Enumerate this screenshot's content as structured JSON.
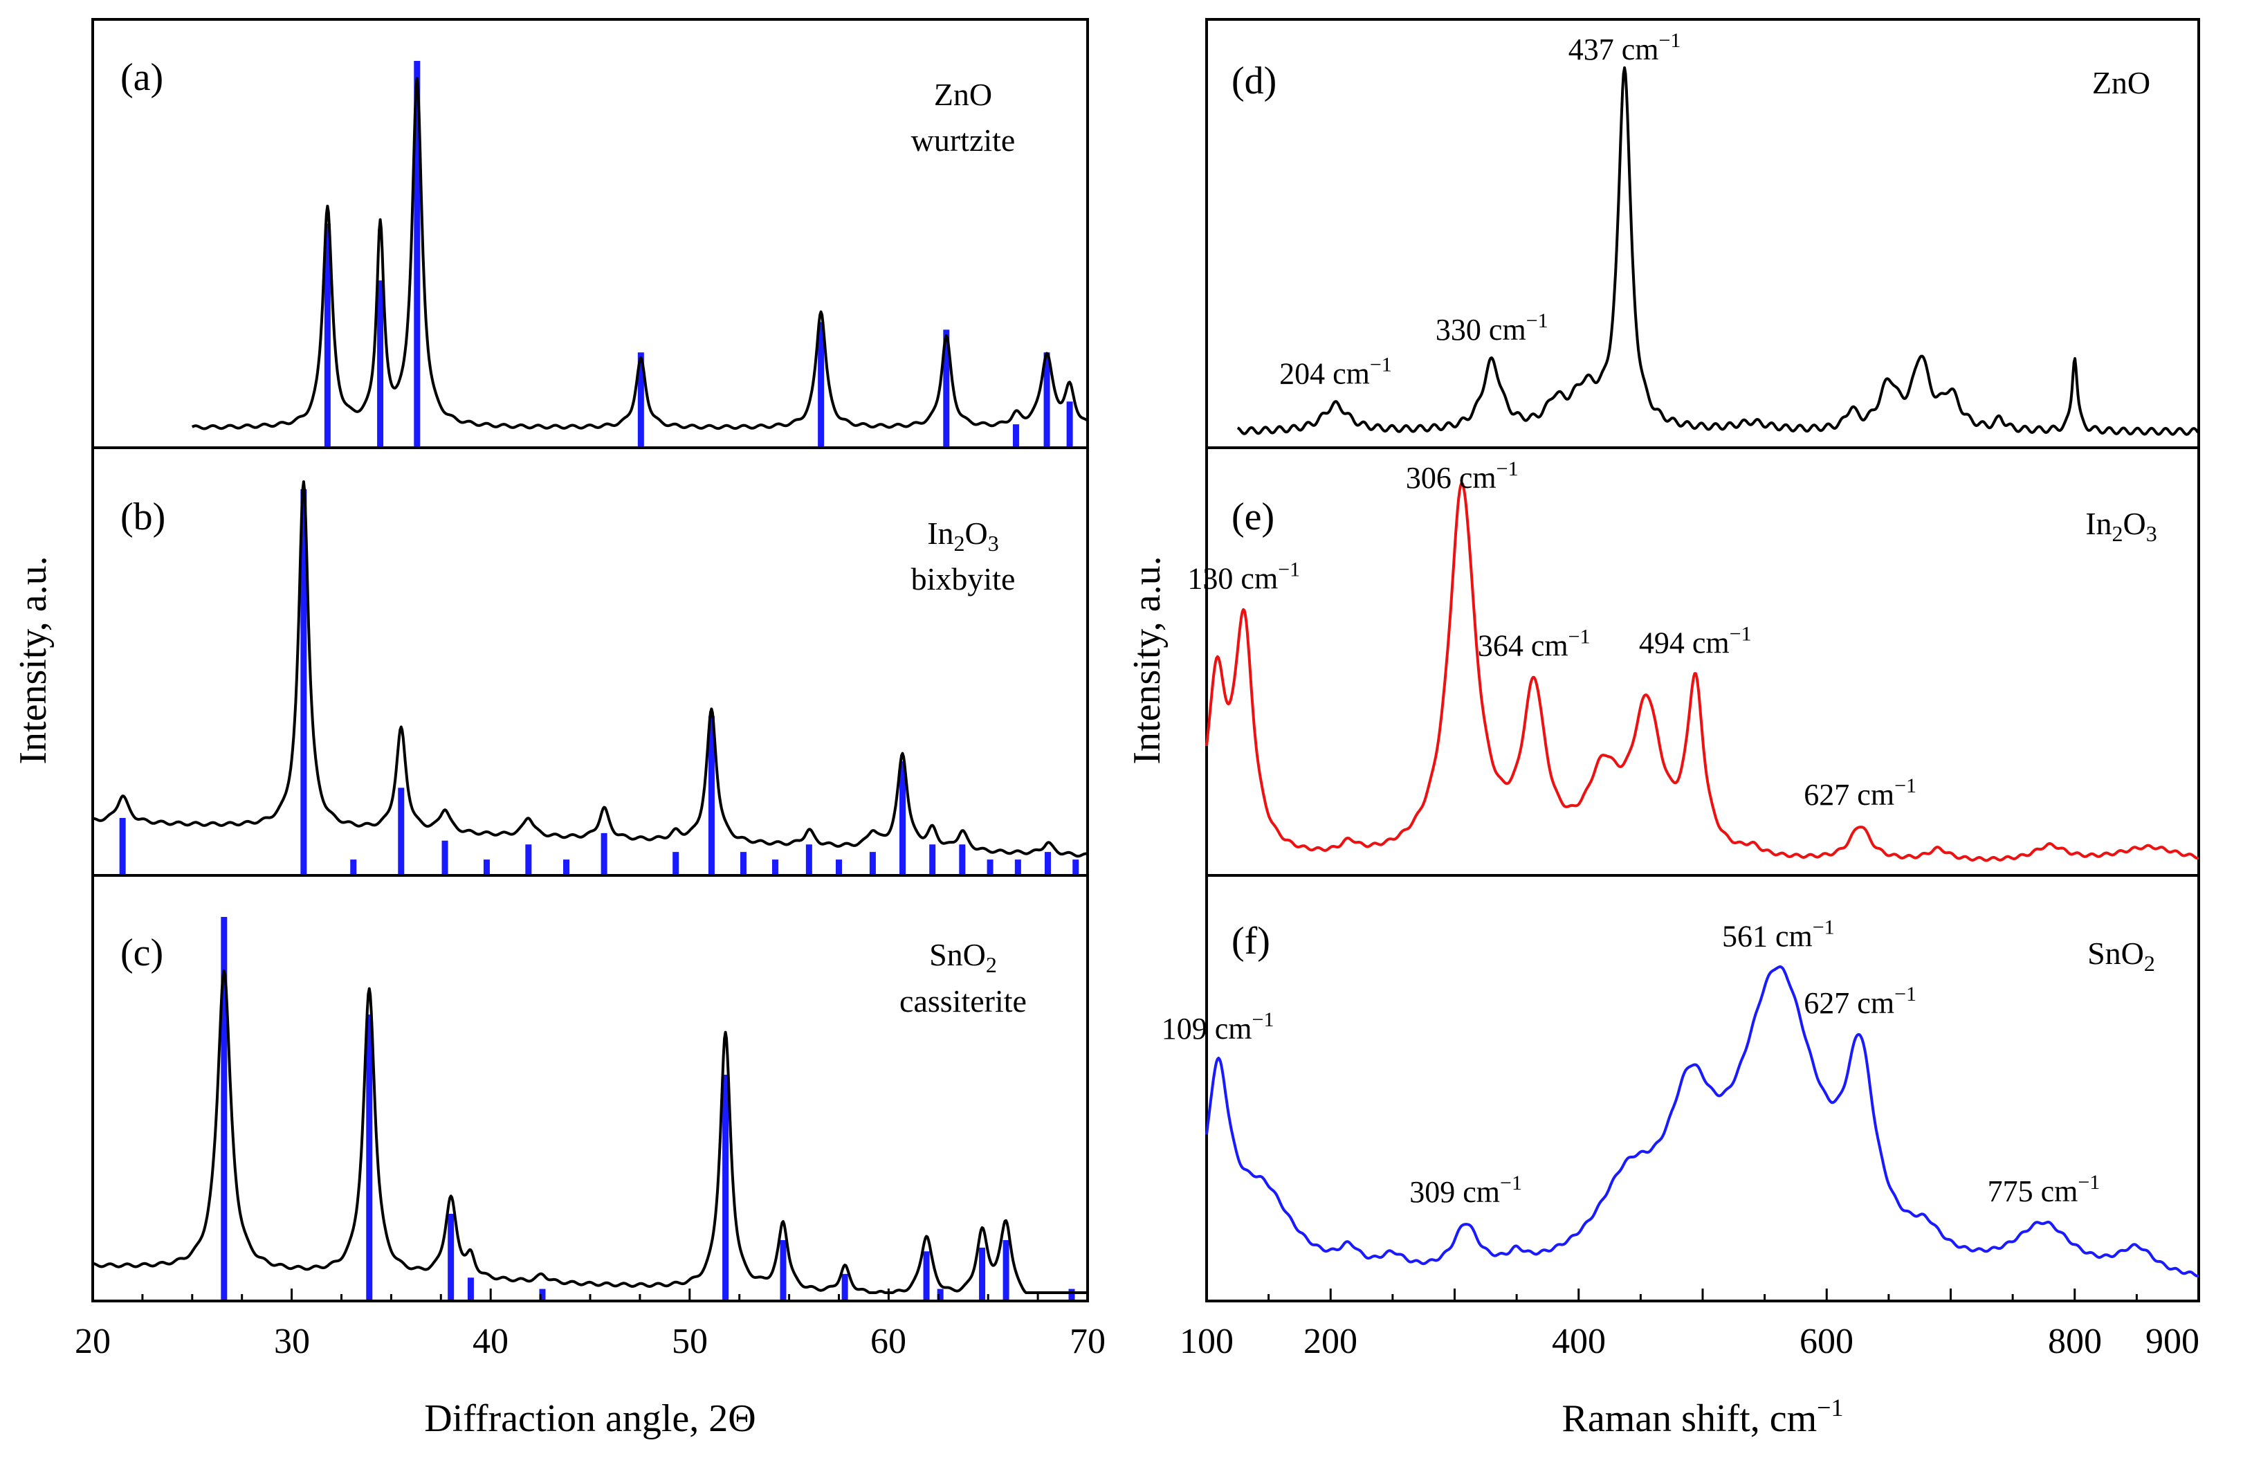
{
  "chart_data": [
    {
      "type": "line",
      "panel": "(a)",
      "label_lines": [
        "ZnO",
        "wurtzite"
      ],
      "x_axis": "Diffraction angle, 2Θ",
      "y_axis": "Intensity, a.u.",
      "xlim": [
        20,
        70
      ],
      "x_ticks": [
        20,
        30,
        40,
        50,
        60,
        70
      ],
      "series": [
        {
          "curve": "measured",
          "color": "#000000",
          "x_start": 25.0,
          "x_end": 70.0,
          "baseline": 0.03,
          "slope": 0.0,
          "peaks": [
            [
              31.8,
              0.58,
              0.28
            ],
            [
              34.45,
              0.52,
              0.22
            ],
            [
              36.3,
              0.91,
              0.3
            ],
            [
              47.55,
              0.18,
              0.3
            ],
            [
              56.6,
              0.31,
              0.3
            ],
            [
              62.9,
              0.24,
              0.3
            ],
            [
              66.4,
              0.03,
              0.3
            ],
            [
              67.95,
              0.19,
              0.35
            ],
            [
              69.1,
              0.1,
              0.3
            ]
          ]
        }
      ],
      "reference_lines": {
        "color": "#1a1aff",
        "x": [
          31.8,
          34.45,
          36.3,
          47.55,
          56.6,
          62.9,
          66.4,
          67.95,
          69.1
        ],
        "height": [
          0.57,
          0.42,
          1.0,
          0.23,
          0.31,
          0.29,
          0.04,
          0.23,
          0.1
        ]
      }
    },
    {
      "type": "line",
      "panel": "(b)",
      "label_lines": [
        "In",
        "2",
        "O",
        "3",
        "bixbyite"
      ],
      "xlim": [
        20,
        70
      ],
      "series": [
        {
          "curve": "measured",
          "color": "#000000",
          "x_start": 20.0,
          "x_end": 70.0,
          "baseline": 0.12,
          "slope": -0.0018,
          "peaks": [
            [
              21.5,
              0.07,
              0.35
            ],
            [
              30.6,
              0.92,
              0.3
            ],
            [
              35.5,
              0.27,
              0.3
            ],
            [
              37.7,
              0.06,
              0.3
            ],
            [
              41.9,
              0.05,
              0.3
            ],
            [
              45.7,
              0.08,
              0.3
            ],
            [
              49.3,
              0.02,
              0.3
            ],
            [
              51.1,
              0.35,
              0.3
            ],
            [
              56.0,
              0.04,
              0.3
            ],
            [
              59.2,
              0.04,
              0.3
            ],
            [
              60.7,
              0.25,
              0.3
            ],
            [
              62.2,
              0.05,
              0.3
            ],
            [
              63.7,
              0.05,
              0.3
            ],
            [
              68.0,
              0.03,
              0.3
            ]
          ]
        }
      ],
      "reference_lines": {
        "color": "#1a1aff",
        "x": [
          21.5,
          30.6,
          33.1,
          35.5,
          37.7,
          39.8,
          41.9,
          43.8,
          45.7,
          49.3,
          51.1,
          52.7,
          54.3,
          56.0,
          57.5,
          59.2,
          60.7,
          62.2,
          63.7,
          65.1,
          66.5,
          68.0,
          69.4
        ],
        "height": [
          0.13,
          1.0,
          0.02,
          0.21,
          0.07,
          0.02,
          0.06,
          0.02,
          0.09,
          0.04,
          0.4,
          0.04,
          0.02,
          0.06,
          0.02,
          0.04,
          0.28,
          0.06,
          0.06,
          0.02,
          0.02,
          0.04,
          0.02
        ]
      }
    },
    {
      "type": "line",
      "panel": "(c)",
      "label_lines": [
        "SnO",
        "2",
        "cassiterite"
      ],
      "xlim": [
        20,
        70
      ],
      "series": [
        {
          "curve": "measured",
          "color": "#000000",
          "x_start": 20.0,
          "x_end": 70.0,
          "baseline": 0.07,
          "slope": -0.002,
          "peaks": [
            [
              26.6,
              0.8,
              0.4
            ],
            [
              33.9,
              0.76,
              0.35
            ],
            [
              38.0,
              0.21,
              0.35
            ],
            [
              39.0,
              0.05,
              0.25
            ],
            [
              42.6,
              0.02,
              0.3
            ],
            [
              51.8,
              0.68,
              0.32
            ],
            [
              54.7,
              0.18,
              0.3
            ],
            [
              57.8,
              0.07,
              0.3
            ],
            [
              61.9,
              0.16,
              0.35
            ],
            [
              64.7,
              0.17,
              0.35
            ],
            [
              65.9,
              0.2,
              0.35
            ]
          ]
        }
      ],
      "reference_lines": {
        "color": "#1a1aff",
        "x": [
          26.6,
          33.9,
          38.0,
          39.0,
          42.6,
          51.8,
          54.7,
          57.8,
          61.9,
          62.6,
          64.7,
          65.9,
          69.2
        ],
        "height": [
          1.0,
          0.74,
          0.21,
          0.04,
          0.01,
          0.58,
          0.14,
          0.05,
          0.11,
          0.01,
          0.12,
          0.14,
          0.01
        ]
      }
    },
    {
      "type": "line",
      "panel": "(d)",
      "label_lines": [
        "ZnO"
      ],
      "x_axis": "Raman shift, cm⁻¹",
      "y_axis": "Intensity, a.u.",
      "xlim": [
        100,
        900
      ],
      "x_ticks": [
        100,
        200,
        400,
        600,
        800,
        900
      ],
      "series": [
        {
          "curve": "measured",
          "color": "#000000",
          "x_start": 125,
          "x_end": 900,
          "baseline": 0.02,
          "slope": 0.0,
          "peaks": [
            [
              204,
              0.07,
              12
            ],
            [
              330,
              0.18,
              9
            ],
            [
              381,
              0.06,
              8
            ],
            [
              405,
              0.1,
              14
            ],
            [
              437,
              0.95,
              6
            ],
            [
              540,
              0.02,
              15
            ],
            [
              620,
              0.05,
              5
            ],
            [
              650,
              0.12,
              9
            ],
            [
              676,
              0.18,
              8
            ],
            [
              700,
              0.09,
              9
            ],
            [
              740,
              0.03,
              4
            ],
            [
              800,
              0.2,
              2.5
            ]
          ]
        }
      ],
      "peak_labels": [
        {
          "x": 204,
          "text": "204 cm",
          "sup": "−1"
        },
        {
          "x": 330,
          "text": "330 cm",
          "sup": "−1"
        },
        {
          "x": 437,
          "text": "437 cm",
          "sup": "−1"
        }
      ]
    },
    {
      "type": "line",
      "panel": "(e)",
      "label_lines": [
        "In",
        "2",
        "O",
        "3"
      ],
      "xlim": [
        100,
        900
      ],
      "series": [
        {
          "curve": "measured",
          "color": "#ee1111",
          "x_start": 100,
          "x_end": 900,
          "baseline": 0.01,
          "slope": 0.0,
          "peaks": [
            [
              108,
              0.45,
              9
            ],
            [
              130,
              0.6,
              9
            ],
            [
              215,
              0.03,
              8
            ],
            [
              306,
              0.98,
              13
            ],
            [
              364,
              0.42,
              11
            ],
            [
              420,
              0.2,
              16
            ],
            [
              455,
              0.38,
              14
            ],
            [
              494,
              0.44,
              8
            ],
            [
              540,
              0.02,
              8
            ],
            [
              627,
              0.09,
              10
            ],
            [
              690,
              0.03,
              10
            ],
            [
              780,
              0.04,
              15
            ],
            [
              860,
              0.04,
              30
            ]
          ]
        }
      ],
      "peak_labels": [
        {
          "x": 130,
          "text": "130 cm",
          "sup": "−1"
        },
        {
          "x": 306,
          "text": "306 cm",
          "sup": "−1"
        },
        {
          "x": 364,
          "text": "364 cm",
          "sup": "−1"
        },
        {
          "x": 494,
          "text": "494 cm",
          "sup": "−1"
        },
        {
          "x": 627,
          "text": "627 cm",
          "sup": "−1"
        }
      ]
    },
    {
      "type": "line",
      "panel": "(f)",
      "label_lines": [
        "SnO",
        "2"
      ],
      "x_axis": "Raman shift, cm⁻¹",
      "xlim": [
        100,
        900
      ],
      "x_ticks": [
        100,
        200,
        400,
        600,
        800,
        900
      ],
      "series": [
        {
          "curve": "measured",
          "color": "#1a1aff",
          "x_start": 100,
          "x_end": 900,
          "baseline": 0.02,
          "slope": 0.0,
          "peaks": [
            [
              109,
              0.5,
              12
            ],
            [
              145,
              0.22,
              30
            ],
            [
              215,
              0.05,
              10
            ],
            [
              250,
              0.04,
              12
            ],
            [
              309,
              0.12,
              12
            ],
            [
              350,
              0.03,
              8
            ],
            [
              440,
              0.2,
              30
            ],
            [
              490,
              0.35,
              22
            ],
            [
              561,
              0.78,
              38
            ],
            [
              627,
              0.45,
              14
            ],
            [
              680,
              0.06,
              15
            ],
            [
              775,
              0.13,
              28
            ],
            [
              850,
              0.07,
              18
            ]
          ]
        }
      ],
      "peak_labels": [
        {
          "x": 109,
          "text": "109 cm",
          "sup": "−1"
        },
        {
          "x": 309,
          "text": "309 cm",
          "sup": "−1"
        },
        {
          "x": 561,
          "text": "561 cm",
          "sup": "−1"
        },
        {
          "x": 627,
          "text": "627 cm",
          "sup": "−1"
        },
        {
          "x": 775,
          "text": "775 cm",
          "sup": "−1"
        }
      ]
    }
  ],
  "labels": {
    "xrd_x_title": "Diffraction angle, 2Θ",
    "raman_x_title_main": "Raman shift, cm",
    "raman_x_title_sup": "−1",
    "y_title": "Intensity, a.u.",
    "xrd_ticks": [
      "20",
      "30",
      "40",
      "50",
      "60",
      "70"
    ],
    "raman_ticks": [
      "100",
      "200",
      "400",
      "600",
      "800",
      "900"
    ]
  }
}
